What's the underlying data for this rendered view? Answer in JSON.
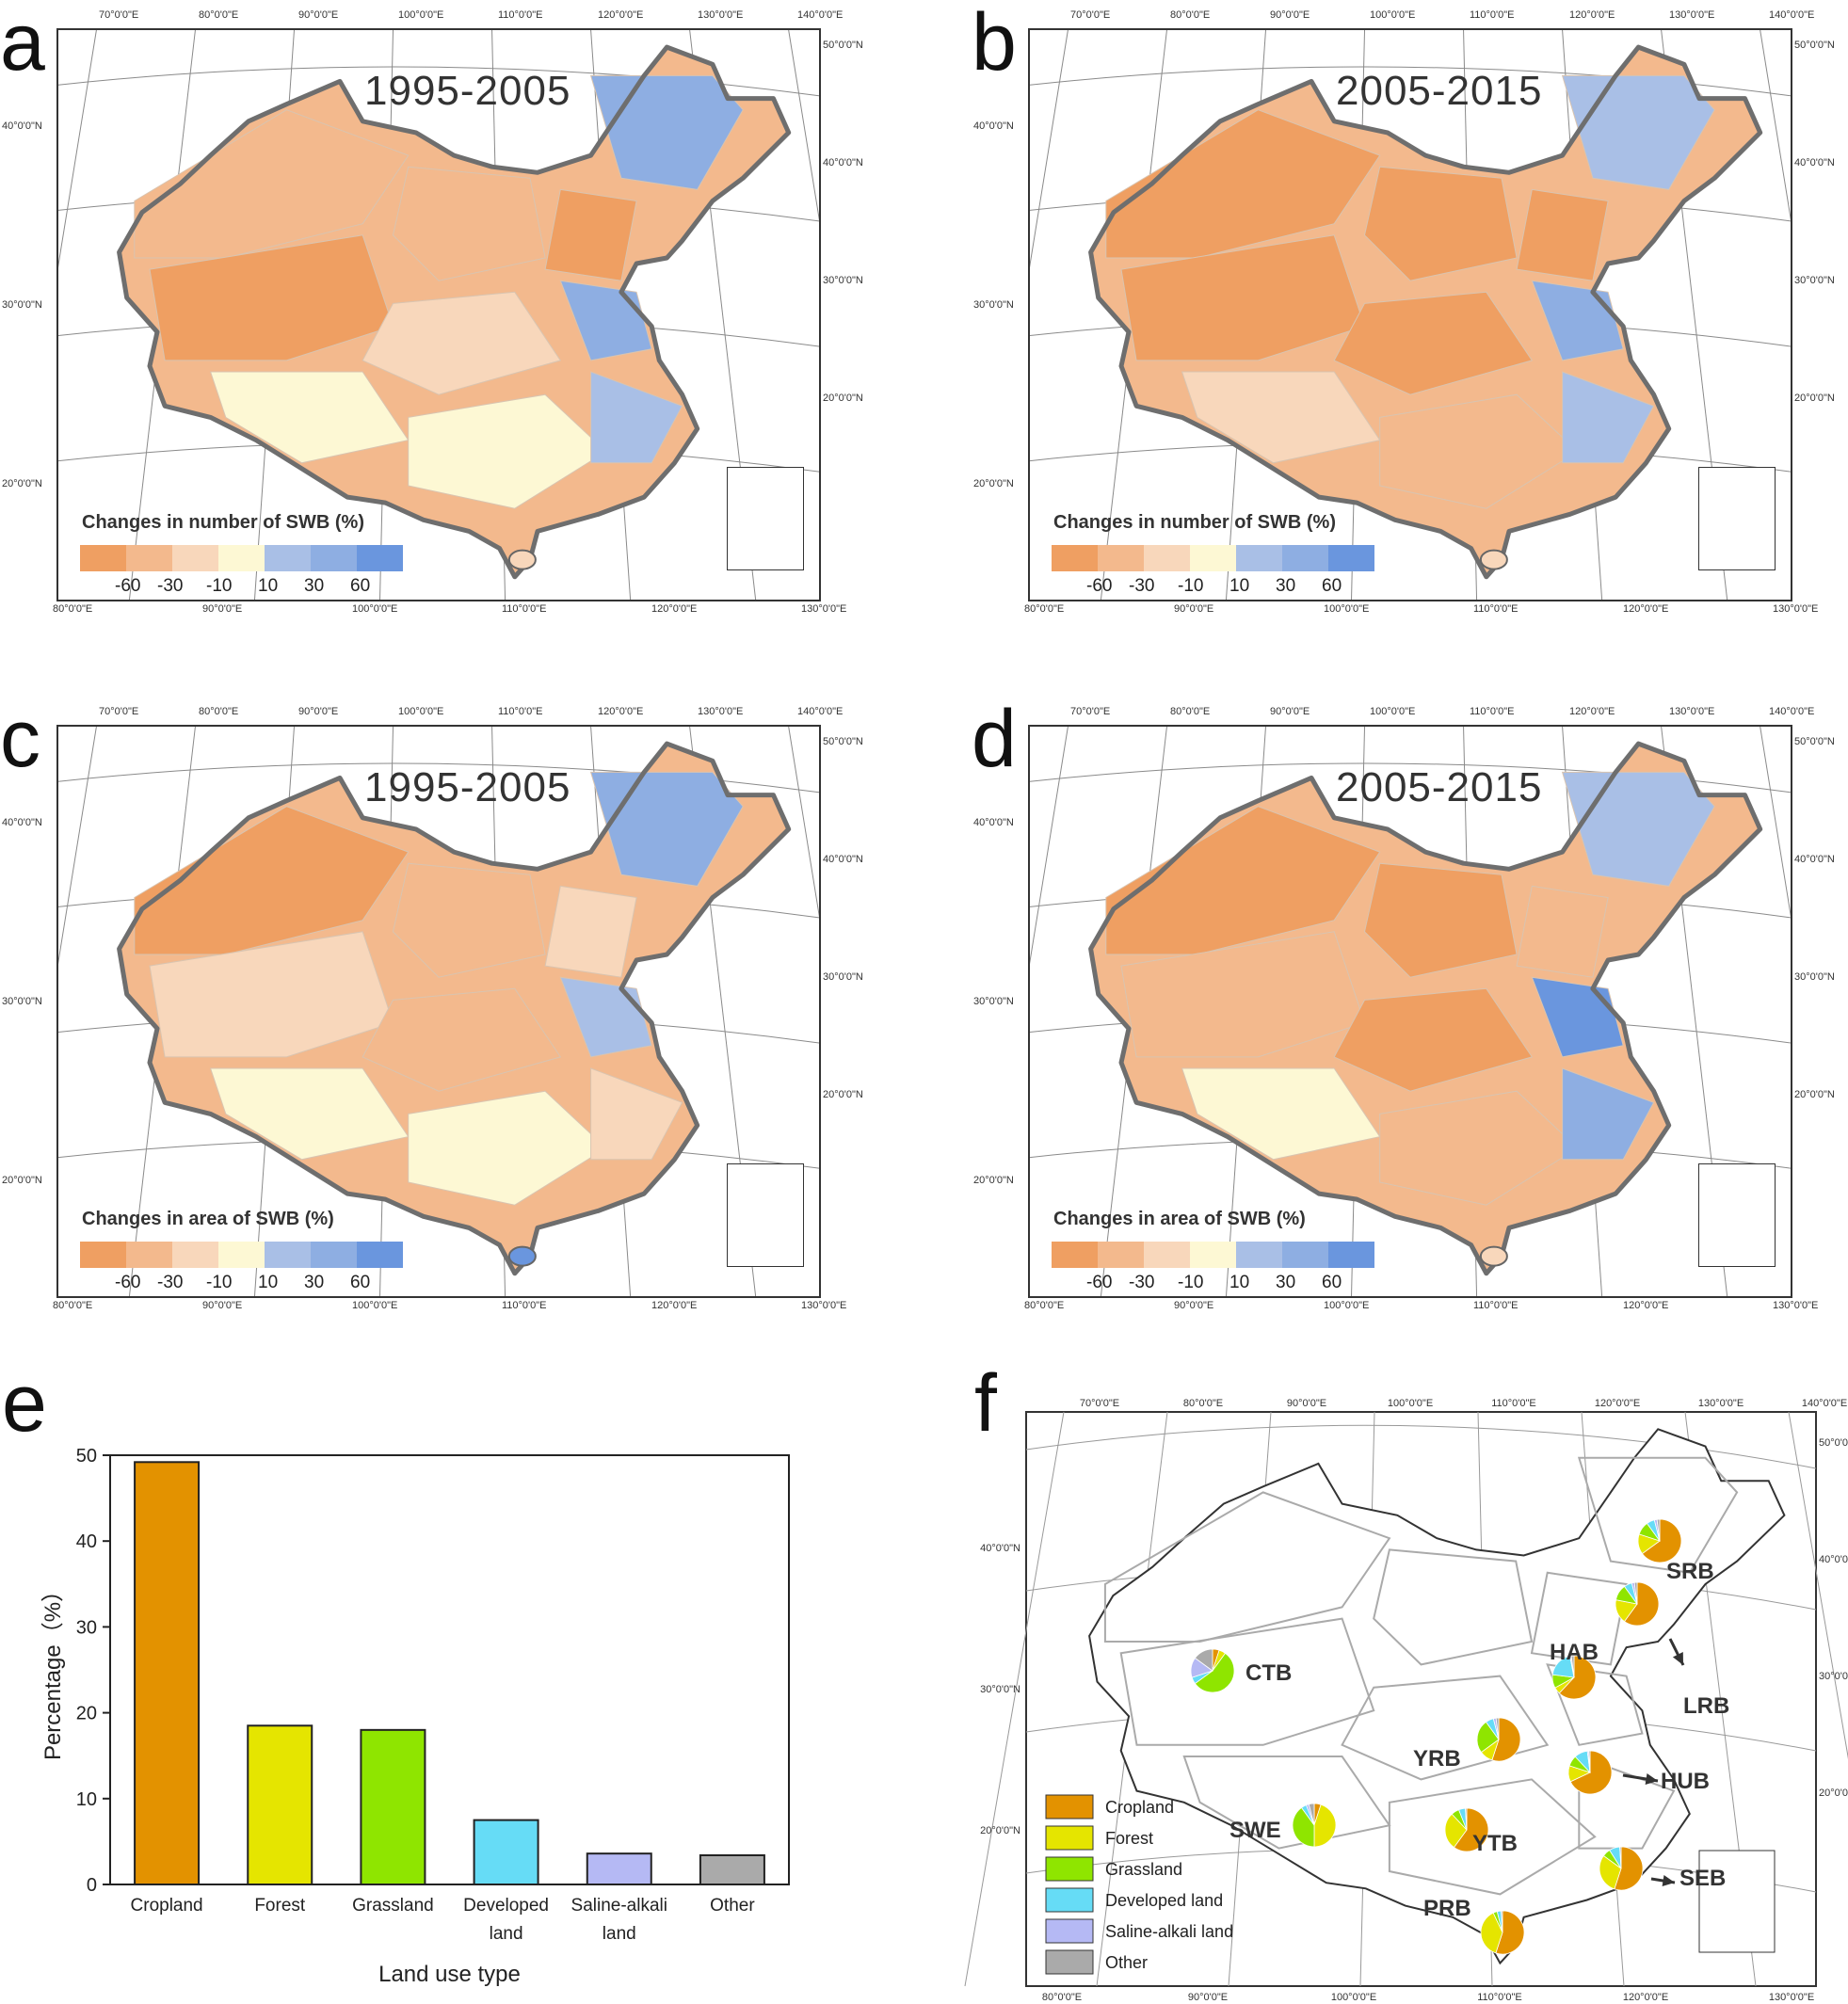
{
  "maps": [
    {
      "label": "a",
      "period": "1995-2005",
      "legend_title": "Changes in number of SWB (%)"
    },
    {
      "label": "b",
      "period": "2005-2015",
      "legend_title": "Changes in number of SWB (%)"
    },
    {
      "label": "c",
      "period": "1995-2005",
      "legend_title": "Changes in area of SWB (%)"
    },
    {
      "label": "d",
      "period": "2005-2015",
      "legend_title": "Changes in area of SWB (%)"
    }
  ],
  "legend": {
    "values": [
      "-60",
      "-30",
      "-10",
      "10",
      "30",
      "60"
    ],
    "colors": [
      "#ef9f62",
      "#f3b98d",
      "#f8d7bb",
      "#fdf8d4",
      "#a9bfe6",
      "#8eaee2",
      "#6a96de"
    ]
  },
  "top_lon_ticks": [
    "70°0'0\"E",
    "80°0'0\"E",
    "90°0'0\"E",
    "100°0'0\"E",
    "110°0'0\"E",
    "120°0'0\"E",
    "130°0'0\"E",
    "140°0'0\"E"
  ],
  "bottom_lon_ticks": [
    "80°0'0\"E",
    "90°0'0\"E",
    "100°0'0\"E",
    "110°0'0\"E",
    "120°0'0\"E",
    "130°0'0\"E"
  ],
  "left_lat_ticks": [
    "40°0'0\"N",
    "30°0'0\"N",
    "20°0'0\"N"
  ],
  "right_lat_ticks": [
    "50°0'0\"N",
    "40°0'0\"N",
    "30°0'0\"N",
    "20°0'0\"N"
  ],
  "chart_data": [
    {
      "panel": "e",
      "type": "bar",
      "xlabel": "Land use type",
      "ylabel": "Percentage（%）",
      "ylim": [
        0,
        50
      ],
      "yticks": [
        0,
        10,
        20,
        30,
        40,
        50
      ],
      "categories": [
        "Cropland",
        "Forest",
        "Grassland",
        "Developed land",
        "Saline-alkali land",
        "Other"
      ],
      "category_lines": [
        [
          "Cropland"
        ],
        [
          "Forest"
        ],
        [
          "Grassland"
        ],
        [
          "Developed",
          "land"
        ],
        [
          "Saline-alkali",
          "land"
        ],
        [
          "Other"
        ]
      ],
      "values": [
        49.2,
        18.5,
        18.0,
        7.5,
        3.6,
        3.4
      ],
      "colors": [
        "#e39200",
        "#e5e500",
        "#8fe500",
        "#66dcf6",
        "#b5b9f4",
        "#aaaaaa"
      ]
    },
    {
      "panel": "f",
      "type": "pie",
      "note": "land-use composition of SWB change by basin (approximate shares, %)",
      "legend": [
        "Cropland",
        "Forest",
        "Grassland",
        "Developed land",
        "Saline-alkali land",
        "Other"
      ],
      "colors": [
        "#e39200",
        "#e5e500",
        "#8fe500",
        "#66dcf6",
        "#b5b9f4",
        "#aaaaaa"
      ],
      "basins": [
        {
          "name": "SRB",
          "values": [
            65,
            15,
            10,
            6,
            2,
            2
          ]
        },
        {
          "name": "LRB",
          "values": [
            60,
            18,
            12,
            6,
            2,
            2
          ]
        },
        {
          "name": "HAB",
          "values": [
            62,
            5,
            10,
            20,
            1,
            2
          ]
        },
        {
          "name": "YRB",
          "values": [
            55,
            10,
            25,
            6,
            2,
            2
          ]
        },
        {
          "name": "CTB",
          "values": [
            5,
            5,
            55,
            5,
            15,
            15
          ]
        },
        {
          "name": "HUB",
          "values": [
            68,
            12,
            8,
            10,
            1,
            1
          ]
        },
        {
          "name": "SWE",
          "values": [
            5,
            45,
            40,
            4,
            2,
            4
          ]
        },
        {
          "name": "YTB",
          "values": [
            60,
            28,
            6,
            5,
            0,
            1
          ]
        },
        {
          "name": "SEB",
          "values": [
            55,
            30,
            6,
            8,
            0,
            1
          ]
        },
        {
          "name": "PRB",
          "values": [
            55,
            38,
            3,
            3,
            0,
            1
          ]
        }
      ]
    }
  ]
}
